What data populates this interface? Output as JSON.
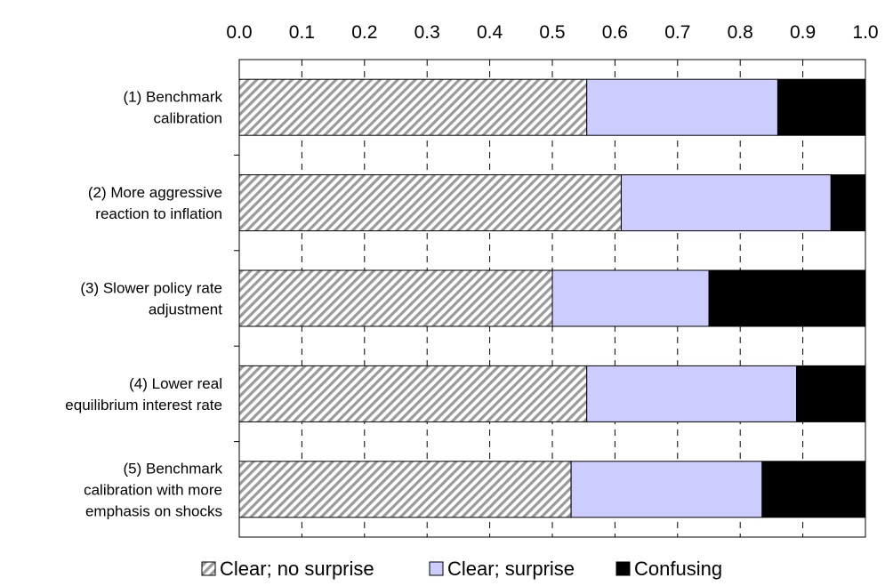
{
  "chart_data": {
    "type": "bar",
    "orientation": "horizontal",
    "stacked": true,
    "title": "",
    "xlabel": "",
    "ylabel": "",
    "xlim": [
      0,
      1
    ],
    "x_ticks": [
      "0.0",
      "0.1",
      "0.2",
      "0.3",
      "0.4",
      "0.5",
      "0.6",
      "0.7",
      "0.8",
      "0.9",
      "1.0"
    ],
    "x_axis_position": "top",
    "grid": "vertical dashed",
    "legend_position": "bottom",
    "categories": [
      [
        "(1) Benchmark",
        "calibration"
      ],
      [
        "(2) More aggressive",
        "reaction to inflation"
      ],
      [
        "(3) Slower policy rate",
        "adjustment"
      ],
      [
        "(4) Lower real",
        "equilibrium interest rate"
      ],
      [
        "(5) Benchmark",
        "calibration with more",
        "emphasis on shocks"
      ]
    ],
    "series": [
      {
        "name": "Clear; no surprise",
        "values": [
          0.555,
          0.61,
          0.5,
          0.555,
          0.53
        ],
        "pattern": "diagonal-hatch",
        "color": "#a6a6a6"
      },
      {
        "name": "Clear; surprise",
        "values": [
          0.305,
          0.335,
          0.25,
          0.335,
          0.305
        ],
        "color": "#ccccff"
      },
      {
        "name": "Confusing",
        "values": [
          0.14,
          0.055,
          0.25,
          0.11,
          0.165
        ],
        "color": "#000000"
      }
    ]
  }
}
